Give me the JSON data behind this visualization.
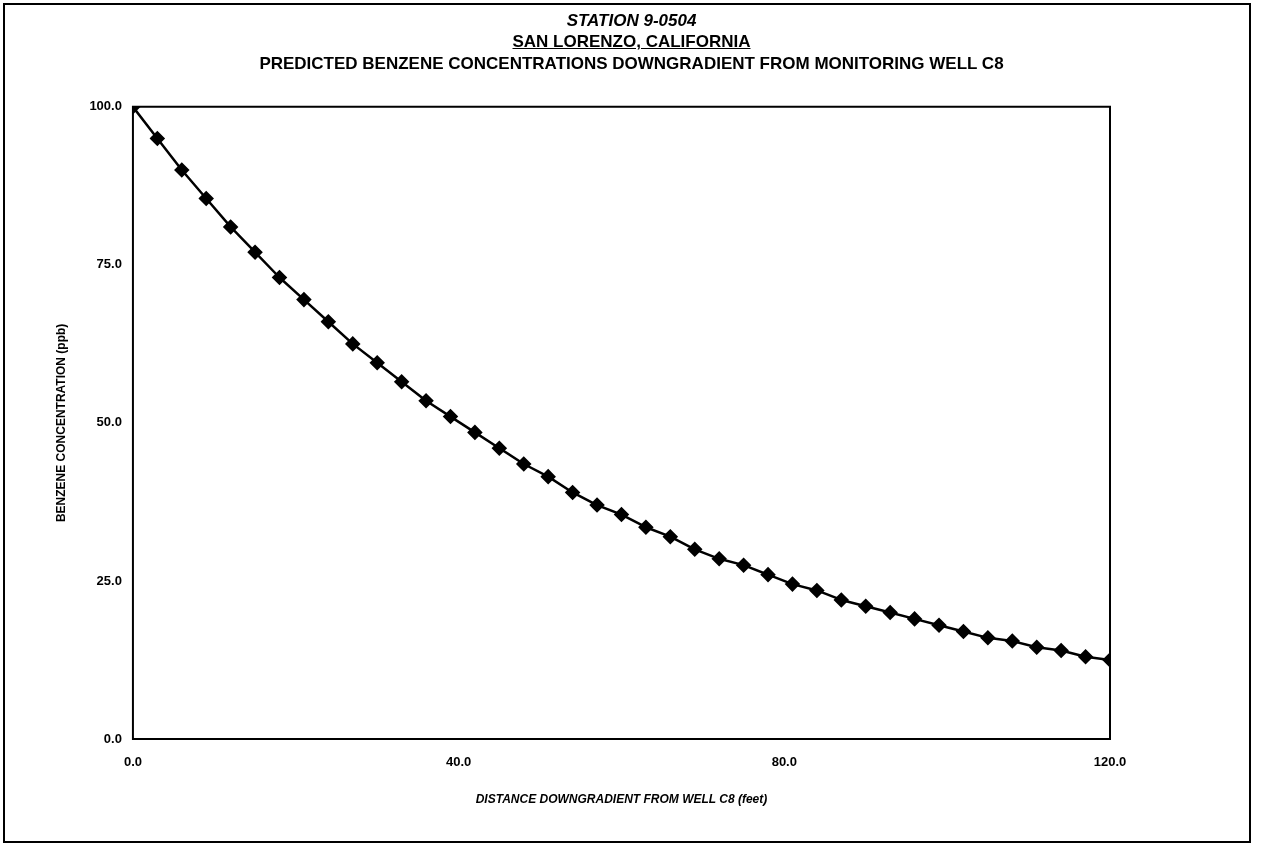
{
  "chart_data": {
    "type": "line",
    "title": "STATION 9-0504",
    "subtitle": "SAN LORENZO, CALIFORNIA",
    "annotations": [
      "PREDICTED BENZENE CONCENTRATIONS DOWNGRADIENT FROM MONITORING WELL C8"
    ],
    "xlabel": "DISTANCE DOWNGRADIENT FROM WELL C8 (feet)",
    "ylabel": "BENZENE CONCENTRATION (ppb)",
    "x": [
      0,
      3,
      6,
      9,
      12,
      15,
      18,
      21,
      24,
      27,
      30,
      33,
      36,
      39,
      42,
      45,
      48,
      51,
      54,
      57,
      60,
      63,
      66,
      69,
      72,
      75,
      78,
      81,
      84,
      87,
      90,
      93,
      96,
      99,
      102,
      105,
      108,
      111,
      114,
      117,
      120
    ],
    "series": [
      {
        "color": "#000000",
        "values": [
          100,
          95,
          90,
          85.5,
          81,
          77,
          73,
          69.5,
          66,
          62.5,
          59.5,
          56.5,
          53.5,
          51,
          48.5,
          46,
          43.5,
          41.5,
          39,
          37,
          35.5,
          33.5,
          32,
          30,
          28.5,
          27.5,
          26,
          24.5,
          23.5,
          22,
          21,
          20,
          19,
          18,
          17,
          16,
          15.5,
          14.5,
          14,
          13,
          12.5
        ]
      }
    ],
    "xlim": [
      0,
      120
    ],
    "xticks": [
      {
        "value": 0,
        "label": "0.0"
      },
      {
        "value": 40,
        "label": "40.0"
      },
      {
        "value": 80,
        "label": "80.0"
      },
      {
        "value": 120,
        "label": "120.0"
      }
    ],
    "ylim": [
      0,
      100
    ],
    "yticks": [
      {
        "value": 0,
        "label": "0.0"
      },
      {
        "value": 25,
        "label": "25.0"
      },
      {
        "value": 50,
        "label": "50.0"
      },
      {
        "value": 75,
        "label": "75.0"
      },
      {
        "value": 100,
        "label": "100.0"
      }
    ],
    "grid": false,
    "legend": false,
    "marker": "diamond",
    "line_style": "solid"
  }
}
